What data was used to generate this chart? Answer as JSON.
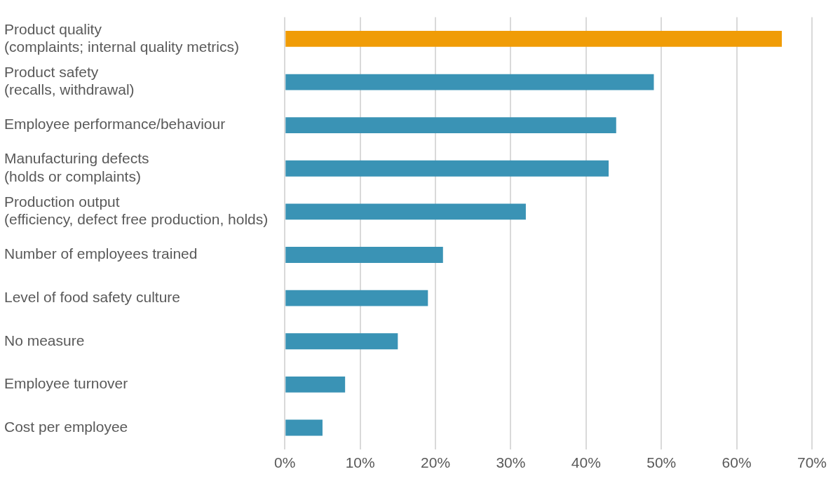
{
  "chart_data": {
    "type": "bar",
    "orientation": "horizontal",
    "categories": [
      "Product quality \n(complaints; internal quality metrics)",
      "Product safety \n(recalls, withdrawal)",
      "Employee performance/behaviour",
      "Manufacturing defects \n(holds or complaints)",
      "Production output \n(efficiency, defect free production, holds)",
      "Number of employees trained",
      "Level of food safety culture",
      "No measure",
      "Employee turnover",
      "Cost per employee"
    ],
    "values": [
      66,
      49,
      44,
      43,
      32,
      21,
      19,
      15,
      8,
      5
    ],
    "colors": [
      "#f09c07",
      "#3a93b5",
      "#3a93b5",
      "#3a93b5",
      "#3a93b5",
      "#3a93b5",
      "#3a93b5",
      "#3a93b5",
      "#3a93b5",
      "#3a93b5"
    ],
    "xlim": [
      0,
      70
    ],
    "xticks": [
      {
        "value": 0,
        "label": "0%"
      },
      {
        "value": 10,
        "label": "10%"
      },
      {
        "value": 20,
        "label": "20%"
      },
      {
        "value": 30,
        "label": "30%"
      },
      {
        "value": 40,
        "label": "40%"
      },
      {
        "value": 50,
        "label": "50%"
      },
      {
        "value": 60,
        "label": "60%"
      },
      {
        "value": 70,
        "label": "70%"
      }
    ],
    "grid": "x"
  }
}
